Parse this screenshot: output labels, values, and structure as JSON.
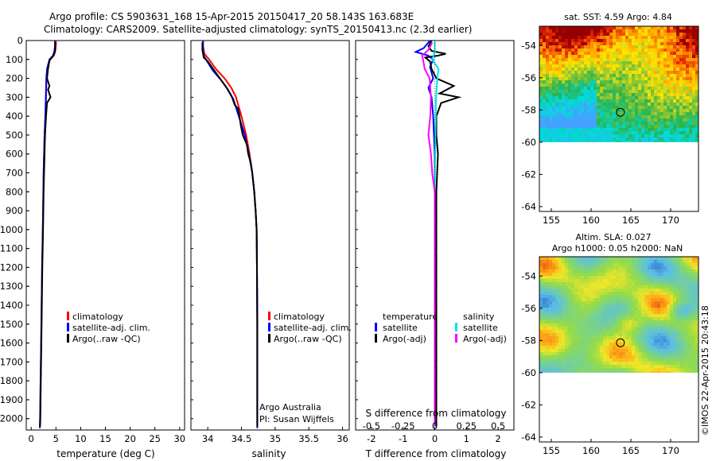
{
  "header": {
    "line1": "Argo profile: CS 5903631_168 15-Apr-2015 20150417_20 58.143S 163.683E",
    "line2": "Climatology: CARS2009. Satellite-adjusted climatology: synTS_20150413.nc (2.3d earlier)"
  },
  "credits": {
    "program": "Argo Australia",
    "pi": "PI: Susan Wijffels",
    "watermark": "©IMOS 22-Apr-2015 20:43:18"
  },
  "colors": {
    "climatology": "#ff0000",
    "satellite": "#0000ff",
    "argo": "#000000",
    "sal_satellite": "#00e5e5",
    "sal_argo": "#ff00ff"
  },
  "chart_data": [
    {
      "type": "line",
      "xlabel": "temperature (deg C)",
      "ylabel": "",
      "xlim": [
        -1,
        31
      ],
      "ylim": [
        2060,
        0
      ],
      "xticks": [
        "0",
        "5",
        "10",
        "15",
        "20",
        "25",
        "30"
      ],
      "yticks": [
        "0",
        "100",
        "200",
        "300",
        "400",
        "500",
        "600",
        "700",
        "800",
        "900",
        "1000",
        "1100",
        "1200",
        "1300",
        "1400",
        "1500",
        "1600",
        "1700",
        "1800",
        "1900",
        "2000"
      ],
      "legend": [
        "climatology",
        "satellite-adj. clim.",
        "Argo(..raw -QC)"
      ],
      "series": [
        {
          "name": "climatology",
          "color": "#ff0000",
          "points": [
            [
              5.0,
              0
            ],
            [
              5.0,
              20
            ],
            [
              4.9,
              50
            ],
            [
              4.6,
              80
            ],
            [
              3.8,
              100
            ],
            [
              3.3,
              150
            ],
            [
              3.1,
              200
            ],
            [
              3.0,
              300
            ],
            [
              2.9,
              400
            ],
            [
              2.7,
              500
            ],
            [
              2.6,
              600
            ],
            [
              2.5,
              700
            ],
            [
              2.45,
              800
            ],
            [
              2.35,
              1000
            ],
            [
              2.2,
              1200
            ],
            [
              2.1,
              1400
            ],
            [
              2.0,
              1600
            ],
            [
              1.9,
              1800
            ],
            [
              1.8,
              2000
            ],
            [
              1.75,
              2050
            ]
          ]
        },
        {
          "name": "satellite-adj. clim.",
          "color": "#0000ff",
          "points": [
            [
              4.8,
              0
            ],
            [
              4.8,
              30
            ],
            [
              4.7,
              55
            ],
            [
              4.4,
              80
            ],
            [
              3.7,
              100
            ],
            [
              3.2,
              150
            ],
            [
              3.05,
              200
            ],
            [
              2.95,
              300
            ],
            [
              2.85,
              400
            ],
            [
              2.7,
              500
            ],
            [
              2.6,
              600
            ],
            [
              2.5,
              700
            ],
            [
              2.45,
              800
            ],
            [
              2.35,
              1000
            ],
            [
              2.2,
              1200
            ],
            [
              2.1,
              1400
            ],
            [
              2.0,
              1600
            ],
            [
              1.9,
              1800
            ],
            [
              1.8,
              2000
            ],
            [
              1.75,
              2050
            ]
          ]
        },
        {
          "name": "Argo(..raw -QC)",
          "color": "#000000",
          "points": [
            [
              4.85,
              5
            ],
            [
              4.85,
              40
            ],
            [
              4.8,
              60
            ],
            [
              4.3,
              85
            ],
            [
              3.7,
              105
            ],
            [
              3.4,
              150
            ],
            [
              3.2,
              200
            ],
            [
              3.7,
              240
            ],
            [
              3.4,
              260
            ],
            [
              3.9,
              300
            ],
            [
              3.2,
              330
            ],
            [
              3.0,
              400
            ],
            [
              2.8,
              500
            ],
            [
              2.7,
              600
            ],
            [
              2.6,
              700
            ],
            [
              2.5,
              800
            ],
            [
              2.4,
              1000
            ],
            [
              2.25,
              1200
            ],
            [
              2.15,
              1400
            ],
            [
              2.05,
              1600
            ],
            [
              1.95,
              1800
            ],
            [
              1.85,
              2000
            ],
            [
              1.8,
              2040
            ]
          ]
        }
      ]
    },
    {
      "type": "line",
      "xlabel": "salinity",
      "ylabel": "",
      "xlim": [
        33.75,
        36.1
      ],
      "ylim": [
        2060,
        0
      ],
      "xticks": [
        "34",
        "34.5",
        "35",
        "35.5",
        "36"
      ],
      "legend": [
        "climatology",
        "satellite-adj. clim.",
        "Argo(..raw -QC)"
      ],
      "series": [
        {
          "name": "climatology",
          "color": "#ff0000",
          "points": [
            [
              33.93,
              0
            ],
            [
              33.93,
              30
            ],
            [
              33.95,
              70
            ],
            [
              34.02,
              100
            ],
            [
              34.12,
              150
            ],
            [
              34.25,
              200
            ],
            [
              34.35,
              250
            ],
            [
              34.42,
              300
            ],
            [
              34.5,
              400
            ],
            [
              34.57,
              500
            ],
            [
              34.62,
              600
            ],
            [
              34.66,
              700
            ],
            [
              34.69,
              800
            ],
            [
              34.71,
              900
            ],
            [
              34.725,
              1000
            ],
            [
              34.73,
              1200
            ],
            [
              34.735,
              1500
            ],
            [
              34.735,
              2050
            ]
          ]
        },
        {
          "name": "satellite-adj. clim.",
          "color": "#0000ff",
          "points": [
            [
              33.93,
              0
            ],
            [
              33.93,
              35
            ],
            [
              33.94,
              80
            ],
            [
              33.99,
              110
            ],
            [
              34.08,
              160
            ],
            [
              34.2,
              210
            ],
            [
              34.3,
              260
            ],
            [
              34.38,
              310
            ],
            [
              34.46,
              400
            ],
            [
              34.55,
              500
            ],
            [
              34.61,
              600
            ],
            [
              34.66,
              700
            ],
            [
              34.69,
              800
            ],
            [
              34.71,
              900
            ],
            [
              34.725,
              1000
            ],
            [
              34.73,
              1200
            ],
            [
              34.735,
              1500
            ],
            [
              34.735,
              2050
            ]
          ]
        },
        {
          "name": "Argo(..raw -QC)",
          "color": "#000000",
          "points": [
            [
              33.92,
              10
            ],
            [
              33.92,
              50
            ],
            [
              33.94,
              90
            ],
            [
              34.0,
              110
            ],
            [
              34.08,
              150
            ],
            [
              34.18,
              200
            ],
            [
              34.28,
              250
            ],
            [
              34.36,
              300
            ],
            [
              34.4,
              340
            ],
            [
              34.45,
              360
            ],
            [
              34.47,
              400
            ],
            [
              34.49,
              450
            ],
            [
              34.52,
              500
            ],
            [
              34.58,
              550
            ],
            [
              34.6,
              600
            ],
            [
              34.64,
              650
            ],
            [
              34.66,
              700
            ],
            [
              34.69,
              800
            ],
            [
              34.71,
              900
            ],
            [
              34.725,
              1000
            ],
            [
              34.73,
              1200
            ],
            [
              34.735,
              1500
            ],
            [
              34.735,
              2040
            ]
          ]
        }
      ]
    },
    {
      "type": "line",
      "xlabel": "T difference from climatology",
      "xlabel_top": "S difference from climatology",
      "xlim": [
        -2.5,
        2.5
      ],
      "ylim": [
        2060,
        0
      ],
      "xticks": [
        "-2",
        "-1",
        "0",
        "1",
        "2"
      ],
      "xticks_top": [
        "-0.5",
        "-0.25",
        "0",
        "0.25",
        "0.5"
      ],
      "legend_temperature": {
        "title": "temperature",
        "items": [
          "satellite",
          "Argo(-adj)"
        ]
      },
      "legend_salinity": {
        "title": "salinity",
        "items": [
          "satellite",
          "Argo(-adj)"
        ]
      },
      "series": [
        {
          "name": "temperature satellite",
          "color": "#0000ff",
          "points": [
            [
              -0.15,
              0
            ],
            [
              -0.35,
              40
            ],
            [
              -0.6,
              60
            ],
            [
              -0.2,
              80
            ],
            [
              -0.05,
              100
            ],
            [
              -0.15,
              140
            ],
            [
              -0.05,
              200
            ],
            [
              -0.2,
              250
            ],
            [
              -0.1,
              300
            ],
            [
              -0.05,
              400
            ],
            [
              0,
              600
            ],
            [
              0,
              800
            ],
            [
              0,
              1000
            ],
            [
              0,
              1500
            ],
            [
              0,
              2050
            ]
          ]
        },
        {
          "name": "temperature Argo(-adj)",
          "color": "#000000",
          "points": [
            [
              -0.1,
              0
            ],
            [
              -0.2,
              30
            ],
            [
              -0.1,
              55
            ],
            [
              0.35,
              70
            ],
            [
              0.1,
              80
            ],
            [
              -0.3,
              90
            ],
            [
              -0.15,
              110
            ],
            [
              -0.1,
              150
            ],
            [
              0.05,
              200
            ],
            [
              0.6,
              240
            ],
            [
              0.15,
              280
            ],
            [
              0.75,
              300
            ],
            [
              0.2,
              330
            ],
            [
              0.05,
              400
            ],
            [
              0.05,
              500
            ],
            [
              0.1,
              600
            ],
            [
              0.05,
              800
            ],
            [
              0.05,
              1000
            ],
            [
              0.05,
              1500
            ],
            [
              0.05,
              2040
            ]
          ]
        },
        {
          "name": "salinity satellite",
          "color": "#00e5e5",
          "points": [
            [
              0,
              0
            ],
            [
              0,
              60
            ],
            [
              -0.02,
              100
            ],
            [
              0.03,
              150
            ],
            [
              0.02,
              200
            ],
            [
              0.01,
              300
            ],
            [
              0.005,
              500
            ],
            [
              0,
              800
            ],
            [
              0,
              1200
            ],
            [
              0,
              2050
            ]
          ]
        },
        {
          "name": "salinity Argo(-adj)",
          "color": "#ff00ff",
          "points": [
            [
              -0.02,
              10
            ],
            [
              -0.05,
              50
            ],
            [
              -0.1,
              80
            ],
            [
              -0.09,
              110
            ],
            [
              -0.08,
              150
            ],
            [
              -0.04,
              200
            ],
            [
              -0.03,
              300
            ],
            [
              -0.035,
              400
            ],
            [
              -0.05,
              500
            ],
            [
              -0.03,
              600
            ],
            [
              -0.02,
              700
            ],
            [
              0,
              800
            ],
            [
              0,
              1000
            ],
            [
              0,
              1500
            ],
            [
              0,
              2040
            ]
          ]
        }
      ]
    }
  ],
  "maps": [
    {
      "title": "sat. SST: 4.59 Argo: 4.84",
      "xticks": [
        "155",
        "160",
        "165",
        "170"
      ],
      "yticks": [
        "-54",
        "-56",
        "-58",
        "-60",
        "-62",
        "-64"
      ],
      "xlim": [
        153.5,
        173.5
      ],
      "ylim": [
        -64.3,
        -52.8
      ],
      "data_lat_min": -60,
      "marker": {
        "lon": 163.683,
        "lat": -58.143
      },
      "palette": "sst"
    },
    {
      "title": "Altim. SLA: 0.027",
      "title2": "Argo h1000: 0.05 h2000: NaN",
      "xticks": [
        "155",
        "160",
        "165",
        "170"
      ],
      "yticks": [
        "-54",
        "-56",
        "-58",
        "-60",
        "-62",
        "-64"
      ],
      "xlim": [
        153.5,
        173.5
      ],
      "ylim": [
        -64.3,
        -52.8
      ],
      "data_lat_min": -60,
      "marker": {
        "lon": 163.683,
        "lat": -58.143
      },
      "palette": "sla"
    }
  ]
}
